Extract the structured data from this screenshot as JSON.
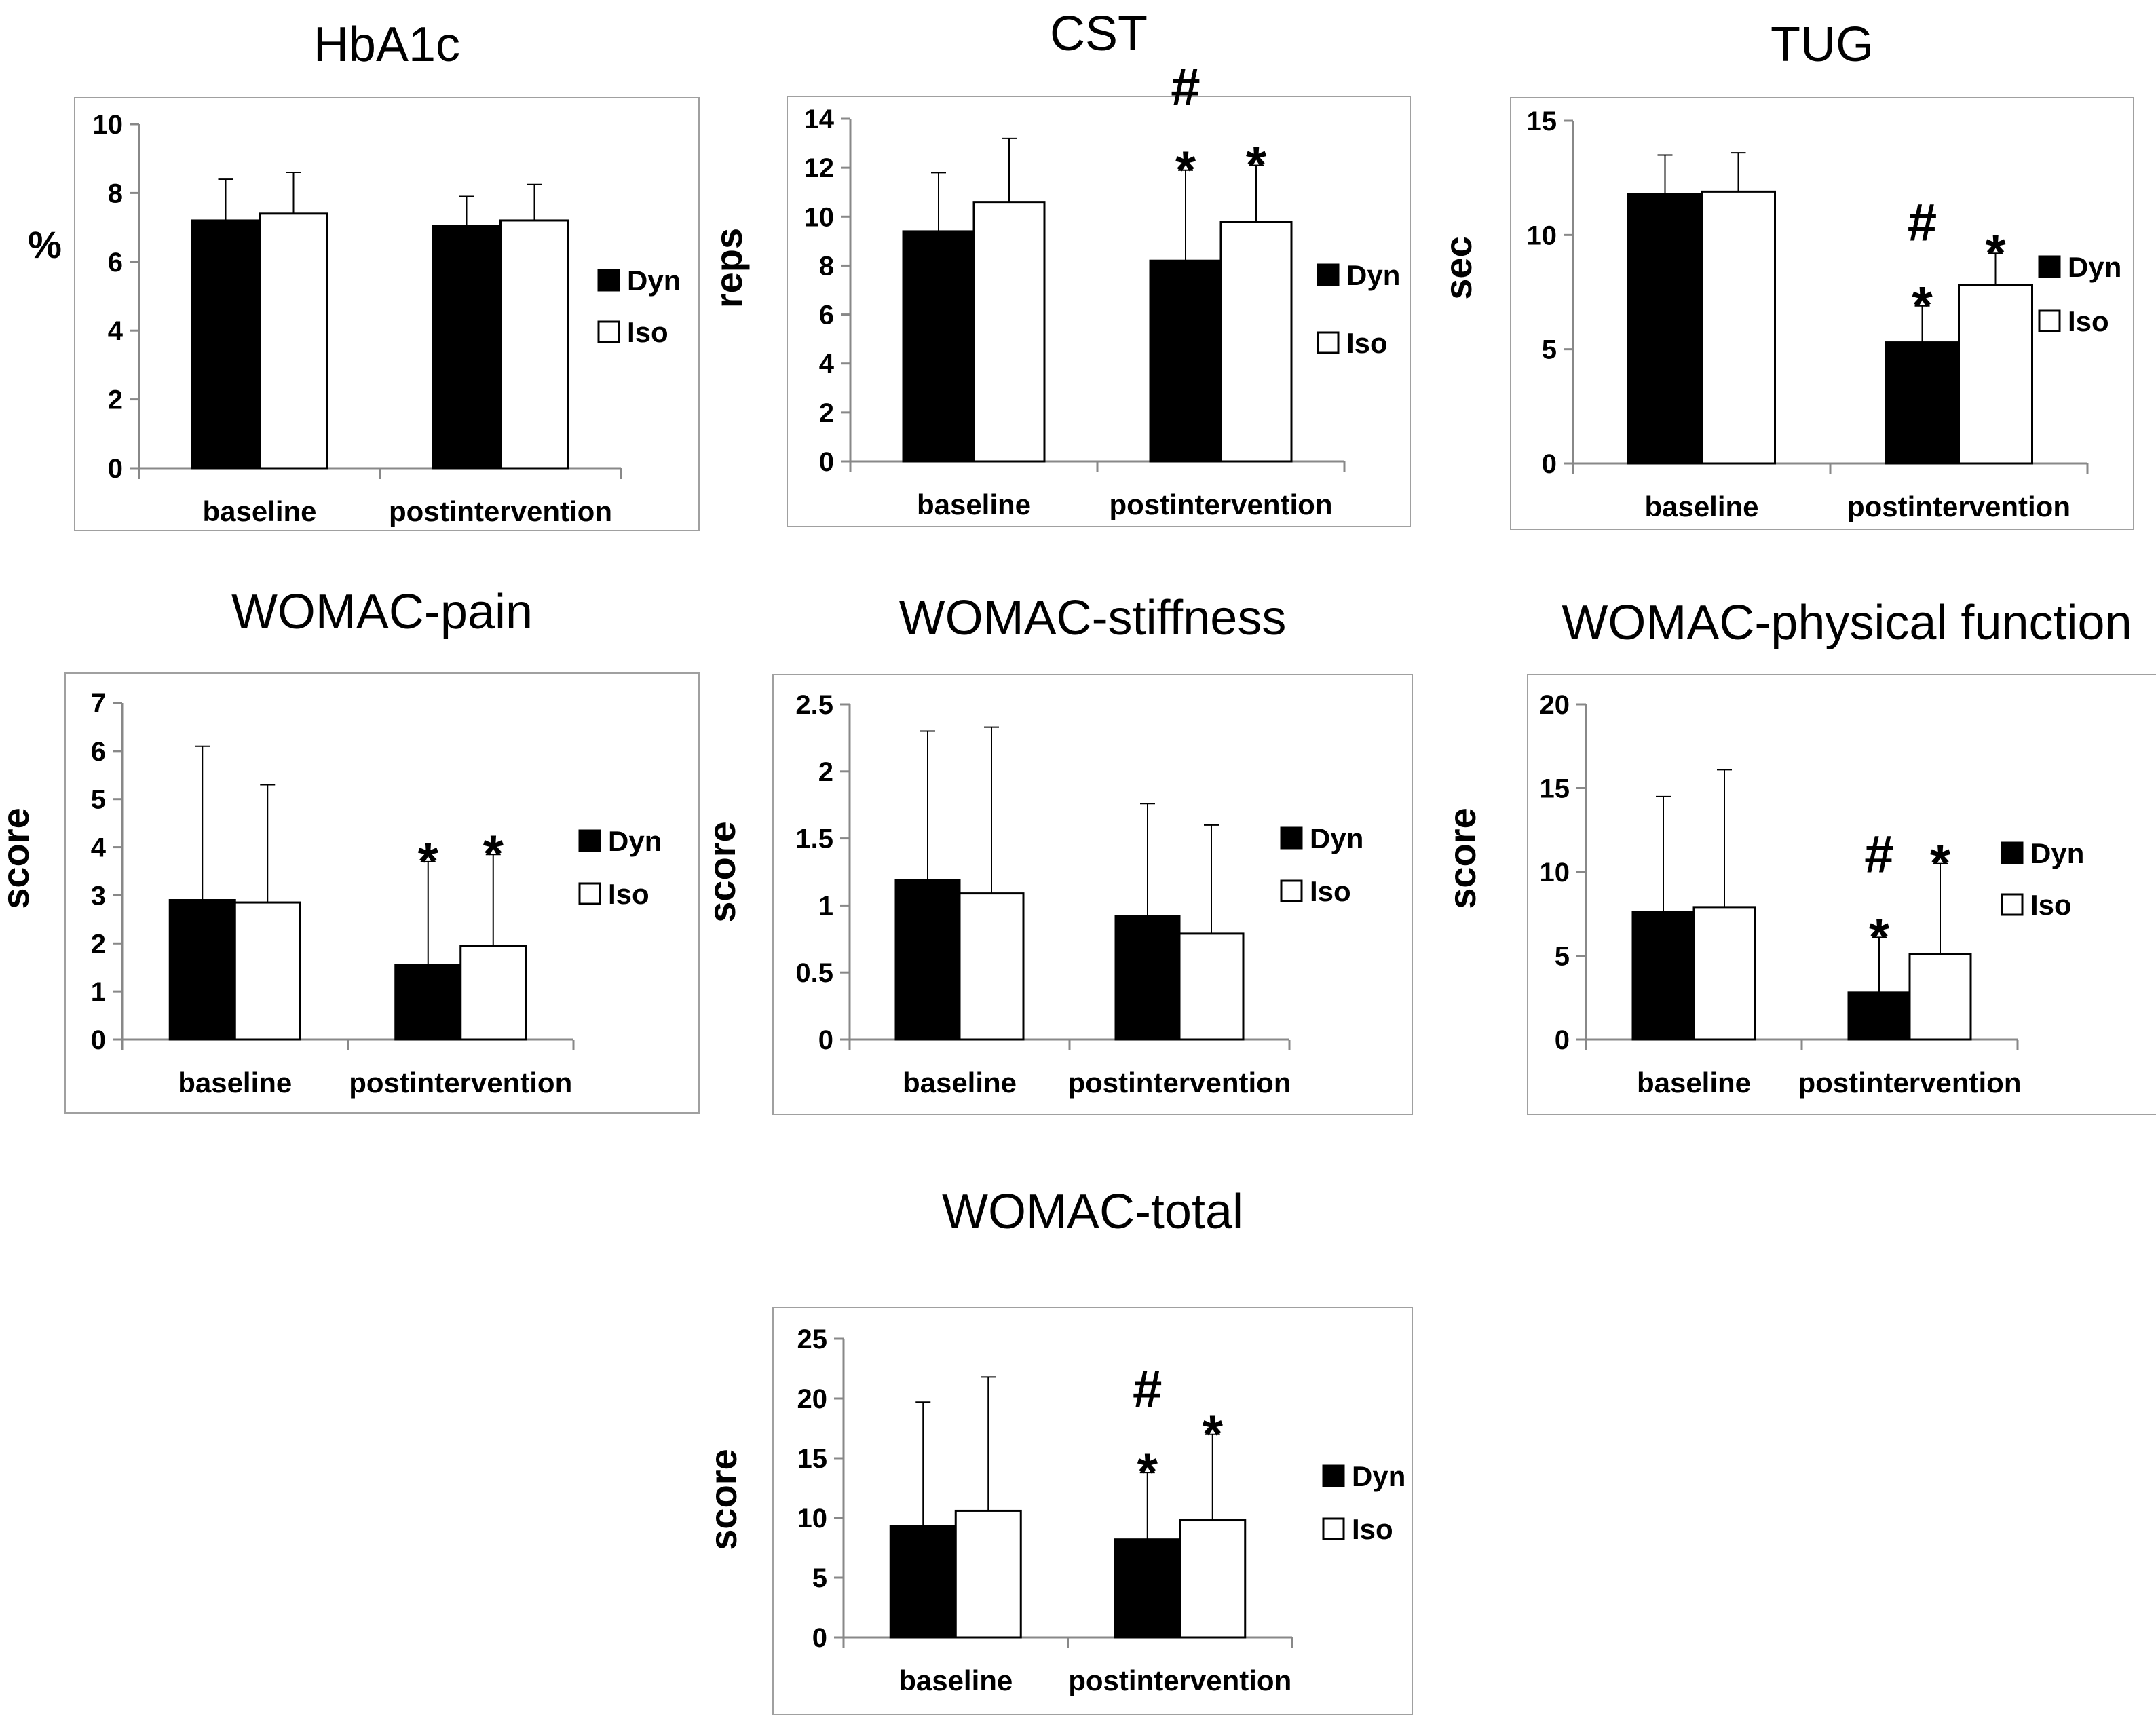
{
  "figure": {
    "legend_series": [
      "Dyn",
      "Iso"
    ],
    "colors": {
      "Dyn": "#000000",
      "Iso": "#ffffff",
      "axis": "#888888",
      "frame": "#a0a0a0"
    }
  },
  "chart_data": [
    {
      "type": "bar",
      "title": "HbA1c",
      "xlabel": "",
      "ylabel": "%",
      "categories": [
        "baseline",
        "postintervention"
      ],
      "yticks": [
        0,
        2,
        4,
        6,
        8,
        10
      ],
      "ylim": [
        0,
        10
      ],
      "series": [
        {
          "name": "Dyn",
          "values": [
            7.2,
            7.05
          ],
          "errors": [
            1.2,
            0.85
          ]
        },
        {
          "name": "Iso",
          "values": [
            7.4,
            7.2
          ],
          "errors": [
            1.2,
            1.05
          ]
        }
      ],
      "annotations": [],
      "grid": false,
      "legend": "right"
    },
    {
      "type": "bar",
      "title": "CST",
      "xlabel": "",
      "ylabel": "reps",
      "categories": [
        "baseline",
        "postintervention"
      ],
      "yticks": [
        0,
        2,
        4,
        6,
        8,
        10,
        12,
        14
      ],
      "ylim": [
        0,
        14
      ],
      "series": [
        {
          "name": "Dyn",
          "values": [
            9.4,
            8.2
          ],
          "errors": [
            2.4,
            3.7
          ]
        },
        {
          "name": "Iso",
          "values": [
            10.6,
            9.8
          ],
          "errors": [
            2.6,
            2.3
          ]
        }
      ],
      "annotations": [
        {
          "series": 0,
          "category": 1,
          "marks": [
            "#",
            "*"
          ]
        },
        {
          "series": 1,
          "category": 1,
          "marks": [
            "*"
          ]
        }
      ],
      "grid": false,
      "legend": "right"
    },
    {
      "type": "bar",
      "title": "TUG",
      "xlabel": "",
      "ylabel": "sec",
      "categories": [
        "baseline",
        "postintervention"
      ],
      "yticks": [
        0,
        5,
        10,
        15
      ],
      "ylim": [
        0,
        15
      ],
      "series": [
        {
          "name": "Dyn",
          "values": [
            11.8,
            5.3
          ],
          "errors": [
            1.7,
            1.6
          ]
        },
        {
          "name": "Iso",
          "values": [
            11.9,
            7.8
          ],
          "errors": [
            1.7,
            1.4
          ]
        }
      ],
      "annotations": [
        {
          "series": 0,
          "category": 1,
          "marks": [
            "#",
            "*"
          ]
        },
        {
          "series": 1,
          "category": 1,
          "marks": [
            "*"
          ]
        }
      ],
      "grid": false,
      "legend": "right"
    },
    {
      "type": "bar",
      "title": "WOMAC-pain",
      "xlabel": "",
      "ylabel": "score",
      "categories": [
        "baseline",
        "postintervention"
      ],
      "yticks": [
        0,
        1,
        2,
        3,
        4,
        5,
        6,
        7
      ],
      "ylim": [
        0,
        7
      ],
      "series": [
        {
          "name": "Dyn",
          "values": [
            2.9,
            1.55
          ],
          "errors": [
            3.2,
            2.15
          ]
        },
        {
          "name": "Iso",
          "values": [
            2.85,
            1.95
          ],
          "errors": [
            2.45,
            1.9
          ]
        }
      ],
      "annotations": [
        {
          "series": 0,
          "category": 1,
          "marks": [
            "*"
          ]
        },
        {
          "series": 1,
          "category": 1,
          "marks": [
            "*"
          ]
        }
      ],
      "grid": false,
      "legend": "right"
    },
    {
      "type": "bar",
      "title": "WOMAC-stiffness",
      "xlabel": "",
      "ylabel": "score",
      "categories": [
        "baseline",
        "postintervention"
      ],
      "yticks": [
        "0",
        "0.5",
        "1",
        "1.5",
        "2",
        "2.5"
      ],
      "ylim": [
        0,
        2.5
      ],
      "series": [
        {
          "name": "Dyn",
          "values": [
            1.19,
            0.92
          ],
          "errors": [
            1.11,
            0.84
          ]
        },
        {
          "name": "Iso",
          "values": [
            1.09,
            0.79
          ],
          "errors": [
            1.24,
            0.81
          ]
        }
      ],
      "annotations": [],
      "grid": false,
      "legend": "right"
    },
    {
      "type": "bar",
      "title": "WOMAC-physical function",
      "xlabel": "",
      "ylabel": "score",
      "categories": [
        "baseline",
        "postintervention"
      ],
      "yticks": [
        0,
        5,
        10,
        15,
        20
      ],
      "ylim": [
        0,
        20
      ],
      "series": [
        {
          "name": "Dyn",
          "values": [
            7.6,
            2.8
          ],
          "errors": [
            6.9,
            3.3
          ]
        },
        {
          "name": "Iso",
          "values": [
            7.9,
            5.1
          ],
          "errors": [
            8.2,
            5.4
          ]
        }
      ],
      "annotations": [
        {
          "series": 0,
          "category": 1,
          "marks": [
            "#",
            "*"
          ]
        },
        {
          "series": 1,
          "category": 1,
          "marks": [
            "*"
          ]
        }
      ],
      "grid": false,
      "legend": "right"
    },
    {
      "type": "bar",
      "title": "WOMAC-total",
      "xlabel": "",
      "ylabel": "score",
      "categories": [
        "baseline",
        "postintervention"
      ],
      "yticks": [
        0,
        5,
        10,
        15,
        20,
        25
      ],
      "ylim": [
        0,
        25
      ],
      "series": [
        {
          "name": "Dyn",
          "values": [
            9.3,
            8.2
          ],
          "errors": [
            10.4,
            5.6
          ]
        },
        {
          "name": "Iso",
          "values": [
            10.6,
            9.8
          ],
          "errors": [
            11.2,
            7.2
          ]
        }
      ],
      "annotations": [
        {
          "series": 0,
          "category": 1,
          "marks": [
            "#",
            "*"
          ]
        },
        {
          "series": 1,
          "category": 1,
          "marks": [
            "*"
          ]
        }
      ],
      "grid": false,
      "legend": "right"
    }
  ]
}
